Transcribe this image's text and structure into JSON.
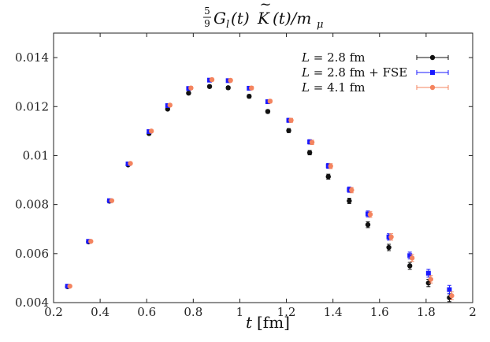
{
  "chart_data": {
    "type": "scatter",
    "title": {
      "frac_num": "5",
      "frac_den": "9",
      "body": "G",
      "sub_l": "l",
      "paren_t1": "(t)",
      "kernel": "K",
      "tilde": "~",
      "paren_t2": "(t)/m",
      "sub_mu": "μ"
    },
    "xlabel": {
      "var": "t",
      "unit": "[fm]"
    },
    "ylabel": "",
    "xlim": [
      0.2,
      2.0
    ],
    "ylim": [
      0.004,
      0.015
    ],
    "xticks": [
      0.2,
      0.4,
      0.6,
      0.8,
      1.0,
      1.2,
      1.4,
      1.6,
      1.8,
      2.0
    ],
    "xtick_labels": [
      "0.2",
      "0.4",
      "0.6",
      "0.8",
      "1",
      "1.2",
      "1.4",
      "1.6",
      "1.8",
      "2"
    ],
    "yticks": [
      0.004,
      0.006,
      0.008,
      0.01,
      0.012,
      0.014
    ],
    "ytick_labels": [
      "0.004",
      "0.006",
      "0.008",
      "0.01",
      "0.012",
      "0.014"
    ],
    "grid": false,
    "legend_position": "top-right",
    "series": [
      {
        "name": "L = 2.8 fm",
        "legend_var": "L",
        "legend_rest": " = 2.8 fm",
        "color": "#111111",
        "marker": "circle",
        "x": [
          0.26,
          0.35,
          0.44,
          0.52,
          0.61,
          0.69,
          0.78,
          0.87,
          0.95,
          1.04,
          1.12,
          1.21,
          1.3,
          1.38,
          1.47,
          1.55,
          1.64,
          1.73,
          1.81,
          1.9
        ],
        "y": [
          0.00465,
          0.00648,
          0.00814,
          0.00962,
          0.0109,
          0.0119,
          0.01255,
          0.01282,
          0.01277,
          0.01242,
          0.0118,
          0.01102,
          0.01012,
          0.00914,
          0.00815,
          0.00718,
          0.00625,
          0.0055,
          0.0048,
          0.0042
        ],
        "err": [
          3e-05,
          3e-05,
          4e-05,
          4e-05,
          5e-05,
          5e-05,
          6e-05,
          6e-05,
          6e-05,
          7e-05,
          7e-05,
          8e-05,
          9e-05,
          0.0001,
          0.00011,
          0.00012,
          0.00013,
          0.00014,
          0.00015,
          0.00016
        ]
      },
      {
        "name": "L = 2.8 fm + FSE",
        "legend_var": "L",
        "legend_rest": " = 2.8 fm + FSE",
        "color": "#1a1aff",
        "marker": "square",
        "x": [
          0.26,
          0.35,
          0.44,
          0.52,
          0.61,
          0.69,
          0.78,
          0.87,
          0.95,
          1.04,
          1.12,
          1.21,
          1.3,
          1.38,
          1.47,
          1.55,
          1.64,
          1.73,
          1.81,
          1.9
        ],
        "y": [
          0.00467,
          0.0065,
          0.00816,
          0.00966,
          0.01098,
          0.01204,
          0.01274,
          0.01308,
          0.01306,
          0.01275,
          0.0122,
          0.01144,
          0.01056,
          0.00958,
          0.00861,
          0.00762,
          0.00668,
          0.00592,
          0.0052,
          0.00453
        ],
        "err": [
          3e-05,
          3e-05,
          4e-05,
          4e-05,
          5e-05,
          5e-05,
          6e-05,
          6e-05,
          6e-05,
          7e-05,
          7e-05,
          8e-05,
          9e-05,
          0.0001,
          0.00011,
          0.00012,
          0.00013,
          0.00014,
          0.00016,
          0.00017
        ]
      },
      {
        "name": "L = 4.1 fm",
        "legend_var": "L",
        "legend_rest": " = 4.1 fm",
        "color": "#f4845f",
        "marker": "circle",
        "x": [
          0.27,
          0.36,
          0.45,
          0.53,
          0.62,
          0.7,
          0.79,
          0.88,
          0.96,
          1.05,
          1.13,
          1.22,
          1.31,
          1.39,
          1.48,
          1.56,
          1.65,
          1.74,
          1.82,
          1.91
        ],
        "y": [
          0.00467,
          0.0065,
          0.00816,
          0.00968,
          0.011,
          0.01206,
          0.01276,
          0.0131,
          0.01307,
          0.01276,
          0.01222,
          0.01144,
          0.01054,
          0.00957,
          0.00859,
          0.0076,
          0.00668,
          0.00582,
          0.00495,
          0.00428
        ],
        "err": [
          3e-05,
          3e-05,
          4e-05,
          4e-05,
          5e-05,
          5e-05,
          6e-05,
          6e-05,
          6e-05,
          7e-05,
          7e-05,
          8e-05,
          9e-05,
          0.0001,
          0.00011,
          0.00012,
          0.00013,
          0.00014,
          0.00015,
          0.00016
        ]
      }
    ]
  }
}
